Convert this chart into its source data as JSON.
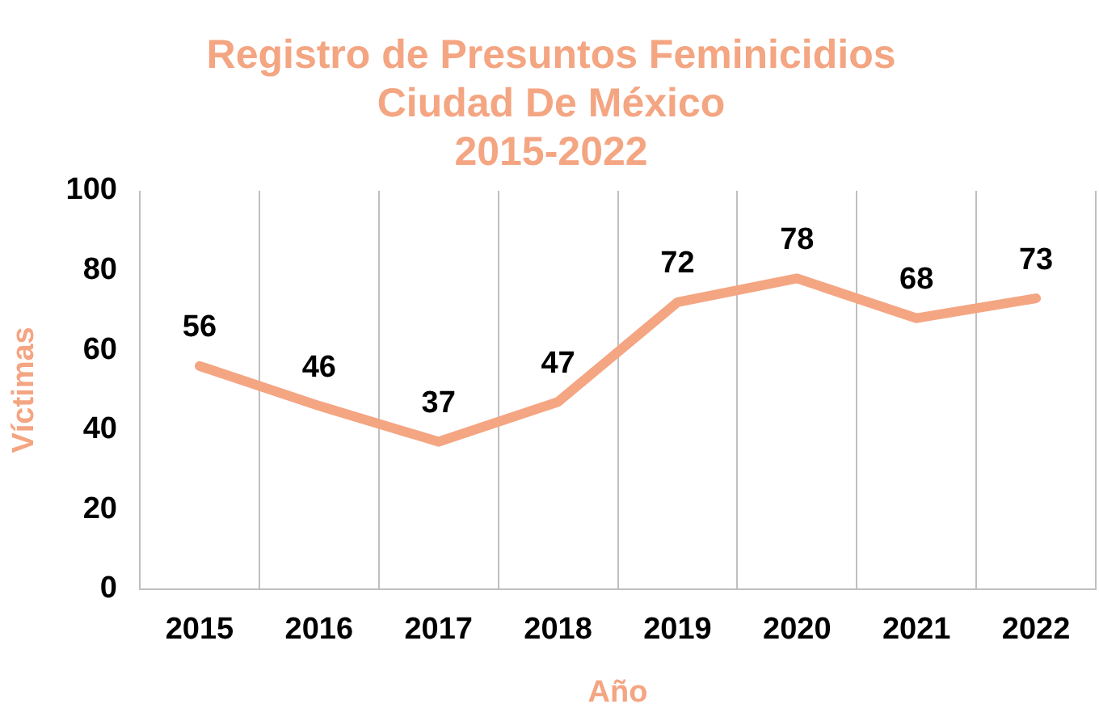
{
  "chart_data": {
    "type": "line",
    "title": "Registro de Presuntos Feminicidios\nCiudad De México\n2015-2022",
    "xlabel": "Año",
    "ylabel": "Víctimas",
    "categories": [
      "2015",
      "2016",
      "2017",
      "2018",
      "2019",
      "2020",
      "2021",
      "2022"
    ],
    "series": [
      {
        "color": "#f4a582",
        "values": [
          56,
          46,
          37,
          47,
          72,
          78,
          68,
          73
        ]
      }
    ],
    "ylim": [
      0,
      100
    ],
    "yticks": [
      0,
      20,
      40,
      60,
      80,
      100
    ],
    "grid": "x",
    "legend": false,
    "marker": "none",
    "line_style": "solid",
    "data_labels": true
  }
}
